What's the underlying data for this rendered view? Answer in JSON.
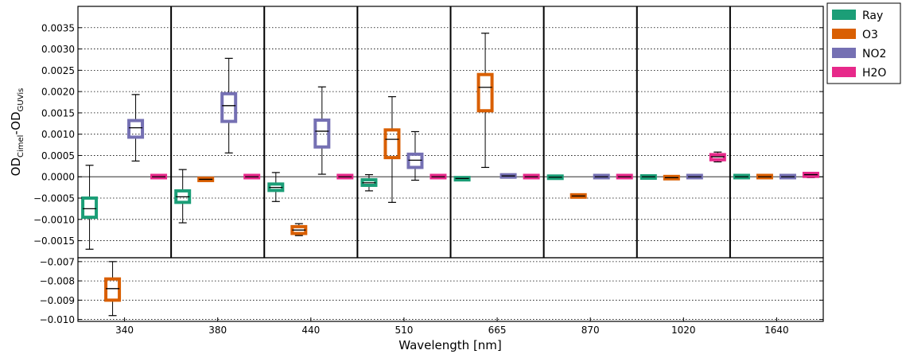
{
  "chart_data": {
    "type": "box",
    "xlabel": "Wavelength [nm]",
    "ylabel_main": "OD",
    "ylabel_sub1": "Cimel",
    "ylabel_dash": "-",
    "ylabel_sub2": "GUVis",
    "categories": [
      "340",
      "380",
      "440",
      "510",
      "665",
      "870",
      "1020",
      "1640"
    ],
    "upper_panel": {
      "ylim": [
        -0.0019,
        0.004
      ],
      "yticks": [
        -0.0015,
        -0.001,
        -0.0005,
        0.0,
        0.0005,
        0.001,
        0.0015,
        0.002,
        0.0025,
        0.003,
        0.0035
      ],
      "ytick_labels": [
        "−0.0015",
        "−0.0010",
        "−0.0005",
        "0.0000",
        "0.0005",
        "0.0010",
        "0.0015",
        "0.0020",
        "0.0025",
        "0.0030",
        "0.0035"
      ]
    },
    "lower_panel": {
      "ylim": [
        -0.0101,
        -0.0068
      ],
      "yticks": [
        -0.01,
        -0.009,
        -0.008,
        -0.007
      ],
      "ytick_labels": [
        "−0.010",
        "−0.009",
        "−0.008",
        "−0.007"
      ]
    },
    "legend_position": "outside-right",
    "series": [
      {
        "name": "Ray",
        "color": "#1b9e77",
        "boxes": [
          {
            "category": "340",
            "whisker_low": -0.0017,
            "q1": -0.00095,
            "median": -0.00075,
            "q3": -0.0005,
            "whisker_high": 0.00027
          },
          {
            "category": "380",
            "whisker_low": -0.00108,
            "q1": -0.0006,
            "median": -0.00047,
            "q3": -0.00033,
            "whisker_high": 0.00017
          },
          {
            "category": "440",
            "whisker_low": -0.00058,
            "q1": -0.00032,
            "median": -0.00025,
            "q3": -0.00017,
            "whisker_high": 0.0001
          },
          {
            "category": "510",
            "whisker_low": -0.00033,
            "q1": -0.0002,
            "median": -0.00014,
            "q3": -7e-05,
            "whisker_high": 5e-05
          },
          {
            "category": "665",
            "whisker_low": -9e-05,
            "q1": -7e-05,
            "median": -4e-05,
            "q3": -2e-05,
            "whisker_high": 0.0
          },
          {
            "category": "870",
            "whisker_low": -3e-05,
            "q1": -2e-05,
            "median": -1e-05,
            "q3": 0.0,
            "whisker_high": 1e-05
          },
          {
            "category": "1020",
            "whisker_low": -2e-05,
            "q1": -1e-05,
            "median": 0.0,
            "q3": 0.0,
            "whisker_high": 1e-05
          },
          {
            "category": "1640",
            "whisker_low": -1e-05,
            "q1": 0.0,
            "median": 0.0,
            "q3": 1e-05,
            "whisker_high": 1e-05
          }
        ]
      },
      {
        "name": "O3",
        "color": "#d95f02",
        "boxes": [
          {
            "category": "340",
            "whisker_low": -0.0098,
            "q1": -0.009,
            "median": -0.0084,
            "q3": -0.0079,
            "whisker_high": -0.007
          },
          {
            "category": "380",
            "whisker_low": -8e-05,
            "q1": -8e-05,
            "median": -6e-05,
            "q3": -4e-05,
            "whisker_high": -4e-05
          },
          {
            "category": "440",
            "whisker_low": -0.00138,
            "q1": -0.00133,
            "median": -0.00125,
            "q3": -0.00117,
            "whisker_high": -0.0011
          },
          {
            "category": "510",
            "whisker_low": -0.0006,
            "q1": 0.00045,
            "median": 0.00088,
            "q3": 0.0011,
            "whisker_high": 0.00188
          },
          {
            "category": "665",
            "whisker_low": 0.00022,
            "q1": 0.00155,
            "median": 0.0021,
            "q3": 0.0024,
            "whisker_high": 0.00337
          },
          {
            "category": "870",
            "whisker_low": -0.00049,
            "q1": -0.00047,
            "median": -0.00045,
            "q3": -0.00043,
            "whisker_high": -0.00041
          },
          {
            "category": "1020",
            "whisker_low": -4e-05,
            "q1": -3e-05,
            "median": -2e-05,
            "q3": -1e-05,
            "whisker_high": 0.0
          },
          {
            "category": "1640",
            "whisker_low": -1e-05,
            "q1": 0.0,
            "median": 0.0,
            "q3": 1e-05,
            "whisker_high": 1e-05
          }
        ]
      },
      {
        "name": "NO2",
        "color": "#7570b3",
        "boxes": [
          {
            "category": "340",
            "whisker_low": 0.00037,
            "q1": 0.00093,
            "median": 0.00115,
            "q3": 0.00132,
            "whisker_high": 0.00193
          },
          {
            "category": "380",
            "whisker_low": 0.00056,
            "q1": 0.0013,
            "median": 0.00167,
            "q3": 0.00195,
            "whisker_high": 0.00278
          },
          {
            "category": "440",
            "whisker_low": 6e-05,
            "q1": 0.0007,
            "median": 0.00107,
            "q3": 0.00133,
            "whisker_high": 0.00211
          },
          {
            "category": "510",
            "whisker_low": -8e-05,
            "q1": 0.00022,
            "median": 0.00039,
            "q3": 0.00053,
            "whisker_high": 0.00106
          },
          {
            "category": "665",
            "whisker_low": 0.0,
            "q1": 1e-05,
            "median": 2e-05,
            "q3": 3e-05,
            "whisker_high": 4e-05
          },
          {
            "category": "870",
            "whisker_low": -1e-05,
            "q1": 0.0,
            "median": 0.0,
            "q3": 1e-05,
            "whisker_high": 1e-05
          },
          {
            "category": "1020",
            "whisker_low": -1e-05,
            "q1": 0.0,
            "median": 0.0,
            "q3": 1e-05,
            "whisker_high": 1e-05
          },
          {
            "category": "1640",
            "whisker_low": -1e-05,
            "q1": 0.0,
            "median": 0.0,
            "q3": 1e-05,
            "whisker_high": 1e-05
          }
        ]
      },
      {
        "name": "H2O",
        "color": "#e7298a",
        "boxes": [
          {
            "category": "340",
            "whisker_low": 0.0,
            "q1": 0.0,
            "median": 0.0,
            "q3": 1e-05,
            "whisker_high": 1e-05
          },
          {
            "category": "380",
            "whisker_low": 0.0,
            "q1": 0.0,
            "median": 0.0,
            "q3": 1e-05,
            "whisker_high": 1e-05
          },
          {
            "category": "440",
            "whisker_low": 0.0,
            "q1": 0.0,
            "median": 0.0,
            "q3": 1e-05,
            "whisker_high": 1e-05
          },
          {
            "category": "510",
            "whisker_low": 0.0,
            "q1": 0.0,
            "median": 0.0,
            "q3": 1e-05,
            "whisker_high": 1e-05
          },
          {
            "category": "665",
            "whisker_low": 0.0,
            "q1": 0.0,
            "median": 0.0,
            "q3": 1e-05,
            "whisker_high": 1e-05
          },
          {
            "category": "870",
            "whisker_low": 0.0,
            "q1": 0.0,
            "median": 0.0,
            "q3": 1e-05,
            "whisker_high": 1e-05
          },
          {
            "category": "1020",
            "whisker_low": 0.00035,
            "q1": 0.0004,
            "median": 0.00047,
            "q3": 0.00052,
            "whisker_high": 0.00058
          },
          {
            "category": "1640",
            "whisker_low": -2e-05,
            "q1": 1e-05,
            "median": 5e-05,
            "q3": 8e-05,
            "whisker_high": 0.0001
          }
        ]
      }
    ]
  }
}
